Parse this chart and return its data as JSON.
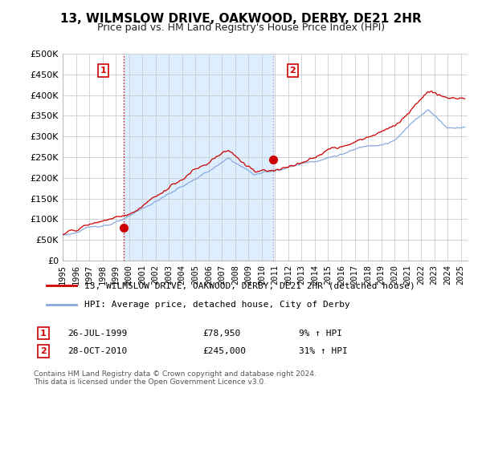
{
  "title": "13, WILMSLOW DRIVE, OAKWOOD, DERBY, DE21 2HR",
  "subtitle": "Price paid vs. HM Land Registry's House Price Index (HPI)",
  "ylabel_ticks": [
    "£0",
    "£50K",
    "£100K",
    "£150K",
    "£200K",
    "£250K",
    "£300K",
    "£350K",
    "£400K",
    "£450K",
    "£500K"
  ],
  "ytick_values": [
    0,
    50000,
    100000,
    150000,
    200000,
    250000,
    300000,
    350000,
    400000,
    450000,
    500000
  ],
  "ylim": [
    0,
    500000
  ],
  "xlim_start": 1995.0,
  "xlim_end": 2025.5,
  "x_years": [
    1995,
    1996,
    1997,
    1998,
    1999,
    2000,
    2001,
    2002,
    2003,
    2004,
    2005,
    2006,
    2007,
    2008,
    2009,
    2010,
    2011,
    2012,
    2013,
    2014,
    2015,
    2016,
    2017,
    2018,
    2019,
    2020,
    2021,
    2022,
    2023,
    2024,
    2025
  ],
  "sale1_x": 1999.57,
  "sale1_y": 78950,
  "sale2_x": 2010.83,
  "sale2_y": 245000,
  "red_line_color": "#cc0000",
  "blue_line_color": "#88aadd",
  "shade_color": "#ddeeff",
  "grid_color": "#cccccc",
  "background_color": "#ffffff",
  "legend_line1": "13, WILMSLOW DRIVE, OAKWOOD, DERBY, DE21 2HR (detached house)",
  "legend_line2": "HPI: Average price, detached house, City of Derby",
  "annotation1_date": "26-JUL-1999",
  "annotation1_price": "£78,950",
  "annotation1_hpi": "9% ↑ HPI",
  "annotation2_date": "28-OCT-2010",
  "annotation2_price": "£245,000",
  "annotation2_hpi": "31% ↑ HPI",
  "footnote": "Contains HM Land Registry data © Crown copyright and database right 2024.\nThis data is licensed under the Open Government Licence v3.0.",
  "title_fontsize": 11,
  "subtitle_fontsize": 9
}
